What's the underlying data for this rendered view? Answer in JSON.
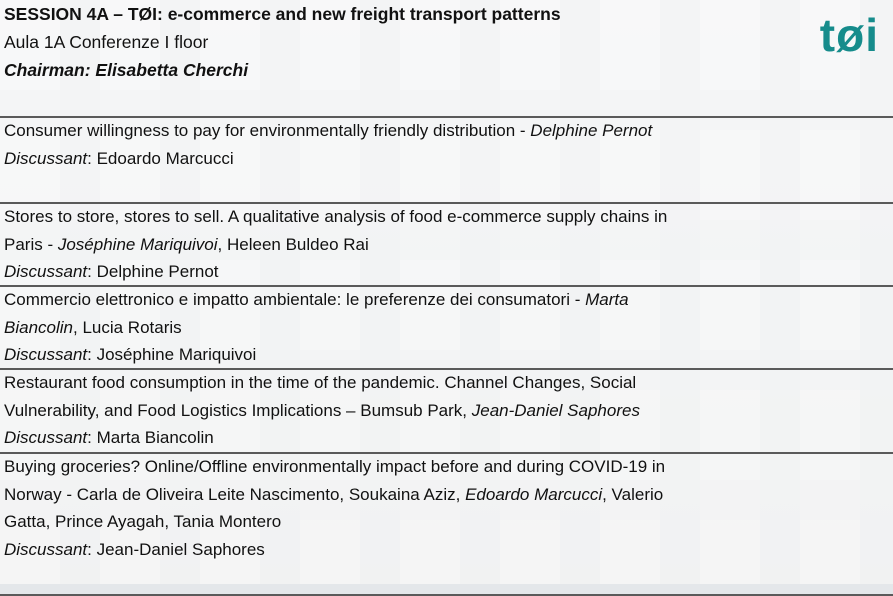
{
  "header": {
    "title": "SESSION 4A – TØI: e-commerce and new freight transport patterns",
    "room": "Aula 1A Conferenze I floor",
    "chairman": "Chairman: Elisabetta Cherchi",
    "logo": "tøi"
  },
  "rows": [
    {
      "lines": [
        [
          {
            "text": "Consumer willingness to pay for environmentally friendly distribution - ",
            "italic": false
          },
          {
            "text": "Delphine Pernot",
            "italic": true
          }
        ],
        [
          {
            "text": "Discussant",
            "italic": true
          },
          {
            "text": ": Edoardo Marcucci",
            "italic": false
          }
        ]
      ]
    },
    {
      "lines": [
        [
          {
            "text": "Stores to store, stores to sell. A qualitative analysis of food e-commerce supply chains in",
            "italic": false
          }
        ],
        [
          {
            "text": "Paris - ",
            "italic": false
          },
          {
            "text": "Joséphine Mariquivoi",
            "italic": true
          },
          {
            "text": ", Heleen Buldeo Rai",
            "italic": false
          }
        ],
        [
          {
            "text": "Discussant",
            "italic": true
          },
          {
            "text": ": Delphine Pernot",
            "italic": false
          }
        ]
      ]
    },
    {
      "lines": [
        [
          {
            "text": "Commercio elettronico e impatto ambientale: le preferenze dei consumatori - ",
            "italic": false
          },
          {
            "text": "Marta",
            "italic": true
          }
        ],
        [
          {
            "text": "Biancolin",
            "italic": true
          },
          {
            "text": ", Lucia Rotaris",
            "italic": false
          }
        ],
        [
          {
            "text": "Discussant",
            "italic": true
          },
          {
            "text": ": Joséphine Mariquivoi",
            "italic": false
          }
        ]
      ]
    },
    {
      "lines": [
        [
          {
            "text": "Restaurant food consumption in the time of the pandemic. Channel Changes, Social",
            "italic": false
          }
        ],
        [
          {
            "text": "Vulnerability, and Food Logistics Implications – Bumsub Park, ",
            "italic": false
          },
          {
            "text": "Jean-Daniel Saphores",
            "italic": true
          }
        ],
        [
          {
            "text": "Discussant",
            "italic": true
          },
          {
            "text": ": Marta Biancolin",
            "italic": false
          }
        ]
      ]
    },
    {
      "lines": [
        [
          {
            "text": "Buying groceries? Online/Offline environmentally impact before and during COVID-19 in",
            "italic": false
          }
        ],
        [
          {
            "text": "Norway - Carla de Oliveira Leite Nascimento, Soukaina Aziz, ",
            "italic": false
          },
          {
            "text": "Edoardo Marcucci",
            "italic": true
          },
          {
            "text": ", Valerio",
            "italic": false
          }
        ],
        [
          {
            "text": "Gatta, Prince Ayagah, Tania Montero",
            "italic": false
          }
        ],
        [
          {
            "text": "Discussant",
            "italic": true
          },
          {
            "text": ": Jean-Daniel Saphores",
            "italic": false
          }
        ]
      ]
    }
  ]
}
